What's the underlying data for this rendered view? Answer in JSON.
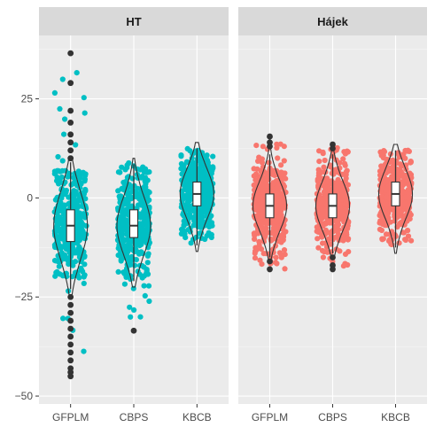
{
  "chart_data": {
    "type": "violin",
    "facets": [
      "HT",
      "Hájek"
    ],
    "categories": [
      "GFPLM",
      "CBPS",
      "KBCB"
    ],
    "ylim": [
      -52,
      41
    ],
    "yticks": [
      25,
      0,
      -25,
      -50
    ],
    "ytick_labels": [
      "25",
      "0",
      "−25",
      "−50"
    ],
    "xlabel": "",
    "ylabel": "",
    "colors": {
      "HT": "#00bfc4",
      "Hájek": "#f8766d"
    },
    "panels": [
      {
        "facet": "HT",
        "groups": [
          {
            "category": "GFPLM",
            "bulk_range": [
              -20,
              7
            ],
            "jitter_range": [
              -45,
              36
            ],
            "q1": -11,
            "median": -7,
            "q3": -3,
            "whisker_low": -23,
            "whisker_high": 9,
            "outliers": [
              36.5,
              29,
              22,
              19,
              16,
              14,
              12,
              10,
              -25,
              -27,
              -29,
              -31,
              -33,
              -35,
              -37,
              -39,
              -41,
              -43,
              -44,
              -45
            ]
          },
          {
            "category": "CBPS",
            "bulk_range": [
              -21,
              8
            ],
            "jitter_range": [
              -33,
              9
            ],
            "q1": -10,
            "median": -7,
            "q3": -3,
            "whisker_low": -21,
            "whisker_high": 8.5,
            "outliers": [
              -33.5
            ]
          },
          {
            "category": "KBCB",
            "bulk_range": [
              -11,
              12
            ],
            "jitter_range": [
              -12,
              12.5
            ],
            "q1": -2,
            "median": 1,
            "q3": 4,
            "whisker_low": -12,
            "whisker_high": 12.5,
            "outliers": []
          }
        ]
      },
      {
        "facet": "Hájek",
        "groups": [
          {
            "category": "GFPLM",
            "bulk_range": [
              -17,
              14
            ],
            "jitter_range": [
              -18,
              15
            ],
            "q1": -5,
            "median": -2,
            "q3": 1,
            "whisker_low": -15,
            "whisker_high": 11,
            "outliers": [
              15.5,
              14,
              13,
              -16,
              -18
            ]
          },
          {
            "category": "CBPS",
            "bulk_range": [
              -17,
              13
            ],
            "jitter_range": [
              -18,
              13.5
            ],
            "q1": -5,
            "median": -2,
            "q3": 1,
            "whisker_low": -14,
            "whisker_high": 11,
            "outliers": [
              13.5,
              12.5,
              -15,
              -17,
              -18
            ]
          },
          {
            "category": "KBCB",
            "bulk_range": [
              -12,
              12
            ],
            "jitter_range": [
              -12,
              12
            ],
            "q1": -2,
            "median": 1,
            "q3": 4,
            "whisker_low": -12.5,
            "whisker_high": 12,
            "outliers": []
          }
        ]
      }
    ]
  }
}
